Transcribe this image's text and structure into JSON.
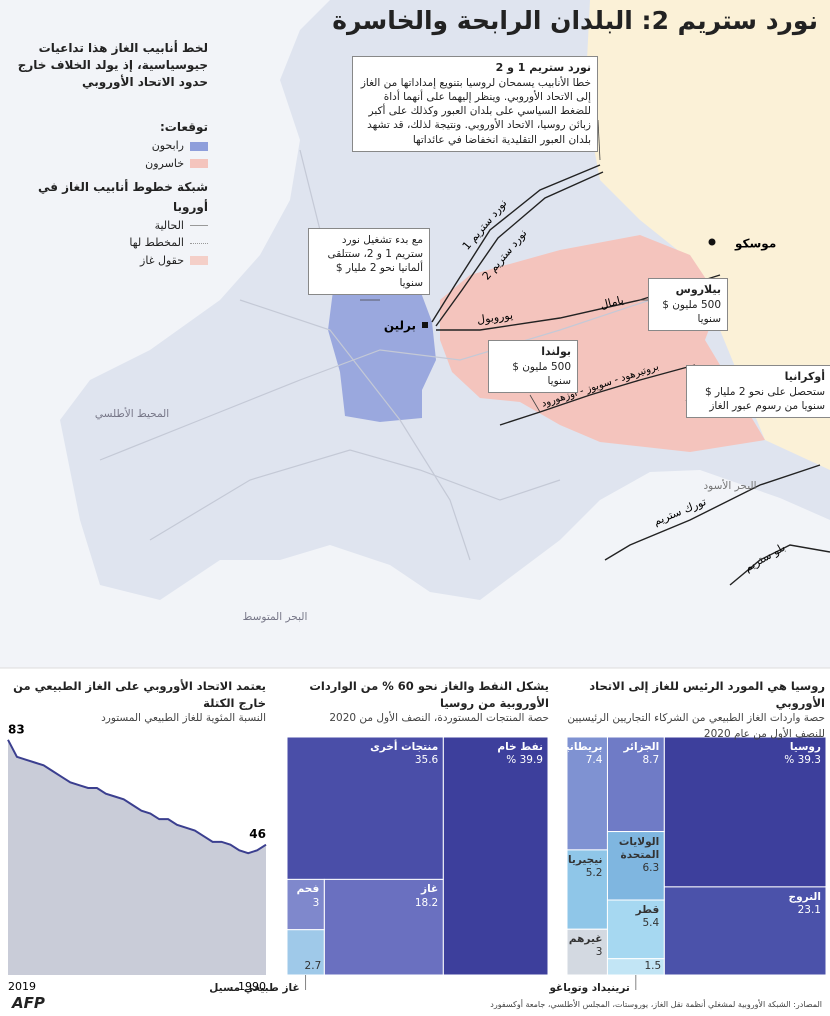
{
  "title": "نورد ستريم 2: البلدان الرابحة والخاسرة",
  "intro": "لخط أنابيب الغاز هذا تداعيات جيوسياسية، إذ يولد الخلاف خارج حدود الاتحاد الأوروبي",
  "legend": {
    "forecast_title": "توقعات:",
    "winners": "رابحون",
    "losers": "خاسرون",
    "network_title": "شبكة خطوط أنابيب الغاز في أوروبا",
    "existing": "الحالية",
    "planned": "المخطط لها",
    "fields": "حقول غاز"
  },
  "map": {
    "moscow": "موسكو",
    "berlin": "برلين",
    "yamal": "يامال",
    "yuropol": "يوروبول",
    "nord_stream_1": "نورد ستريم 1",
    "nord_stream_2": "نورد ستريم 2",
    "brotherhood": "بروتيرهود - سويوز - أوزهورود",
    "black_sea": "البحر الأسود",
    "turk_stream": "تورك ستريم",
    "blue_stream": "بلو ستريم",
    "atlantic": "المحيط الأطلسي",
    "mediterranean": "البحر المتوسط"
  },
  "callouts": {
    "nord_stream": {
      "title": "نورد ستريم 1 و 2",
      "text": "خطا الأنابيب يسمحان لروسيا بتنويع إمداداتها من الغاز إلى الاتحاد الأوروبي. وينظر إليهما على أنهما أداة للضغط السياسي على بلدان العبور وكذلك على أكبر زبائن روسيا، الاتحاد الأوروبي. ونتيجة لذلك، قد تشهد بلدان العبور التقليدية انخفاضا في عائداتها"
    },
    "germany": {
      "text": "مع بدء تشغيل نورد ستريم 1 و 2، ستتلقى ألمانيا نحو 2 مليار $ سنويا"
    },
    "belarus": {
      "title": "بيلاروس",
      "text": "500 مليون $ سنويا"
    },
    "poland": {
      "title": "بولندا",
      "text": "500 مليون $ سنويا"
    },
    "ukraine": {
      "title": "أوكرانيا",
      "text": "ستحصل على نحو 2 مليار $ سنويا من رسوم عبور الغاز"
    }
  },
  "chart_data": [
    {
      "type": "treemap",
      "title": "روسيا هي المورد الرئيس للغاز إلى الاتحاد الأوروبي",
      "subtitle": "حصة واردات الغاز الطبيعي من الشركاء التجاريين الرئيسيين للنصف الأول من عام 2020",
      "categories": [
        "روسيا",
        "النروج",
        "الجزائر",
        "بريطانيا",
        "الولايات المتحدة",
        "نيجيريا",
        "قطر",
        "غيرهم",
        "ترينيداد وتوباغو"
      ],
      "values": [
        39.3,
        23.1,
        8.7,
        7.4,
        6.3,
        5.2,
        5.4,
        3,
        1.5
      ],
      "value_labels": [
        "39.3 %",
        "23.1",
        "8.7",
        "7.4",
        "6.3",
        "5.2",
        "5.4",
        "3",
        "1.5"
      ],
      "colors": [
        "#3d3f9c",
        "#4b52aa",
        "#6f7bc6",
        "#7f92d2",
        "#7fb6e0",
        "#8fc6e8",
        "#a6d8f1",
        "#d3d9e1",
        "#c2e5f5"
      ]
    },
    {
      "type": "treemap",
      "title": "يشكل النفط والغاز نحو 60 % من الواردات الأوروبية من روسيا",
      "subtitle": "حصة المنتجات المستوردة، النصف الأول من 2020",
      "categories": [
        "نفط خام",
        "منتجات أخرى",
        "غاز",
        "فحم",
        "غاز طبيعي مسيل"
      ],
      "values": [
        39.9,
        35.6,
        18.2,
        3,
        2.7
      ],
      "value_labels": [
        "39.9 %",
        "35.6",
        "18.2",
        "3",
        "2.7"
      ],
      "colors": [
        "#3d3f9c",
        "#4a4ea8",
        "#6a70c0",
        "#7f88cc",
        "#9fc9e9"
      ]
    },
    {
      "type": "line",
      "title": "يعتمد الاتحاد الأوروبي على الغاز الطبيعي من خارج الكتلة",
      "subtitle": "النسبة المئوية للغاز الطبيعي المستورد",
      "x": [
        1990,
        1991,
        1992,
        1993,
        1994,
        1995,
        1996,
        1997,
        1998,
        1999,
        2000,
        2001,
        2002,
        2003,
        2004,
        2005,
        2006,
        2007,
        2008,
        2009,
        2010,
        2011,
        2012,
        2013,
        2014,
        2015,
        2016,
        2017,
        2018,
        2019
      ],
      "values": [
        46,
        44,
        43,
        44,
        46,
        47,
        47,
        49,
        51,
        52,
        53,
        55,
        55,
        57,
        58,
        60,
        62,
        63,
        64,
        66,
        66,
        67,
        68,
        70,
        72,
        74,
        75,
        76,
        77,
        83
      ],
      "xlim": [
        2019,
        1990
      ],
      "ylim": [
        0,
        90
      ],
      "color": "#3b3f8f",
      "fill": "#c9ccd8"
    }
  ],
  "sources": "المصادر: الشبكة الأوروبية لمشغلي أنظمة نقل الغاز، يوروستات، المجلس الأطلسي، جامعة أوكسفورد",
  "logo": "AFP"
}
